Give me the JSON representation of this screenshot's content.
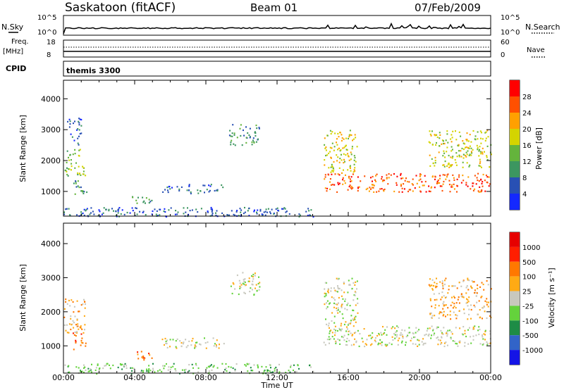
{
  "header": {
    "station": "Saskatoon (fitACF)",
    "beam": "Beam 01",
    "date": "07/Feb/2009"
  },
  "panels": {
    "sky_label": "N.Sky",
    "search_label": "N.Search",
    "sky_ticks": [
      "10^5",
      "10^0"
    ],
    "search_ticks": [
      "10^5",
      "10^0"
    ],
    "freq_label_1": "Freq.",
    "freq_label_2": "[MHz]",
    "freq_ticks": [
      "18",
      "8"
    ],
    "nave_label": "Nave",
    "nave_ticks": [
      "60",
      "0"
    ],
    "cpid_label": "CPID",
    "cpid_value": "themis 3300"
  },
  "axes": {
    "ylabel": "Slant Range [km]",
    "xlabel": "Time UT",
    "xticks": [
      "00:00",
      "04:00",
      "08:00",
      "12:00",
      "16:00",
      "20:00",
      "00:00"
    ],
    "yticks": [
      "1000",
      "2000",
      "3000",
      "4000"
    ]
  },
  "chart_data": [
    {
      "type": "heatmap",
      "title": "Power",
      "colorbar_label": "Power [dB]",
      "colorbar_ticks": [
        "28",
        "24",
        "20",
        "16",
        "12",
        "8",
        "4"
      ],
      "colors": [
        "#1428ff",
        "#2850b4",
        "#3c9660",
        "#64b43c",
        "#d4d400",
        "#ffa000",
        "#ff5000",
        "#ff0000"
      ],
      "xlim": [
        0,
        24
      ],
      "ylim": [
        200,
        4600
      ],
      "regions": [
        {
          "t": [
            0.0,
            1.2
          ],
          "r": [
            1500,
            2400
          ],
          "level": 3
        },
        {
          "t": [
            0.5,
            1.3
          ],
          "r": [
            900,
            1400
          ],
          "level": 2
        },
        {
          "t": [
            0.2,
            1.0
          ],
          "r": [
            2500,
            3400
          ],
          "level": 1
        },
        {
          "t": [
            3.8,
            5.0
          ],
          "r": [
            600,
            900
          ],
          "level": 2
        },
        {
          "t": [
            5.5,
            9.0
          ],
          "r": [
            950,
            1250
          ],
          "level": 1
        },
        {
          "t": [
            9.3,
            11.0
          ],
          "r": [
            2500,
            3200
          ],
          "level": 2
        },
        {
          "t": [
            0.0,
            14.0
          ],
          "r": [
            200,
            500
          ],
          "level": 1
        },
        {
          "t": [
            14.6,
            24.0
          ],
          "r": [
            1000,
            1600
          ],
          "level": 6
        },
        {
          "t": [
            14.6,
            16.5
          ],
          "r": [
            1600,
            3000
          ],
          "level": 4
        },
        {
          "t": [
            20.5,
            24.0
          ],
          "r": [
            1800,
            3000
          ],
          "level": 4
        }
      ]
    },
    {
      "type": "heatmap",
      "title": "Velocity",
      "colorbar_label": "Velocity [m s⁻¹]",
      "colorbar_ticks": [
        "1000",
        "500",
        "100",
        "25",
        "-25",
        "-100",
        "-500",
        "-1000"
      ],
      "colors": [
        "#1414e6",
        "#3264c8",
        "#1e8c46",
        "#64d23c",
        "#c8c8be",
        "#ffaa14",
        "#ff7800",
        "#ff1e00",
        "#e60000"
      ],
      "xlim": [
        0,
        24
      ],
      "ylim": [
        200,
        4600
      ],
      "regions": [
        {
          "t": [
            0.0,
            1.2
          ],
          "r": [
            1400,
            2400
          ],
          "level": 5
        },
        {
          "t": [
            0.5,
            1.3
          ],
          "r": [
            900,
            1400
          ],
          "level": 6
        },
        {
          "t": [
            3.8,
            5.0
          ],
          "r": [
            600,
            900
          ],
          "level": 6
        },
        {
          "t": [
            5.5,
            9.0
          ],
          "r": [
            950,
            1250
          ],
          "level": 4
        },
        {
          "t": [
            9.3,
            11.0
          ],
          "r": [
            2500,
            3200
          ],
          "level": 4
        },
        {
          "t": [
            0.0,
            14.0
          ],
          "r": [
            200,
            500
          ],
          "level": 3
        },
        {
          "t": [
            14.6,
            24.0
          ],
          "r": [
            1000,
            1600
          ],
          "level": 4
        },
        {
          "t": [
            14.6,
            16.5
          ],
          "r": [
            1600,
            3000
          ],
          "level": 4
        },
        {
          "t": [
            20.5,
            24.0
          ],
          "r": [
            1800,
            3000
          ],
          "level": 5
        }
      ]
    }
  ]
}
